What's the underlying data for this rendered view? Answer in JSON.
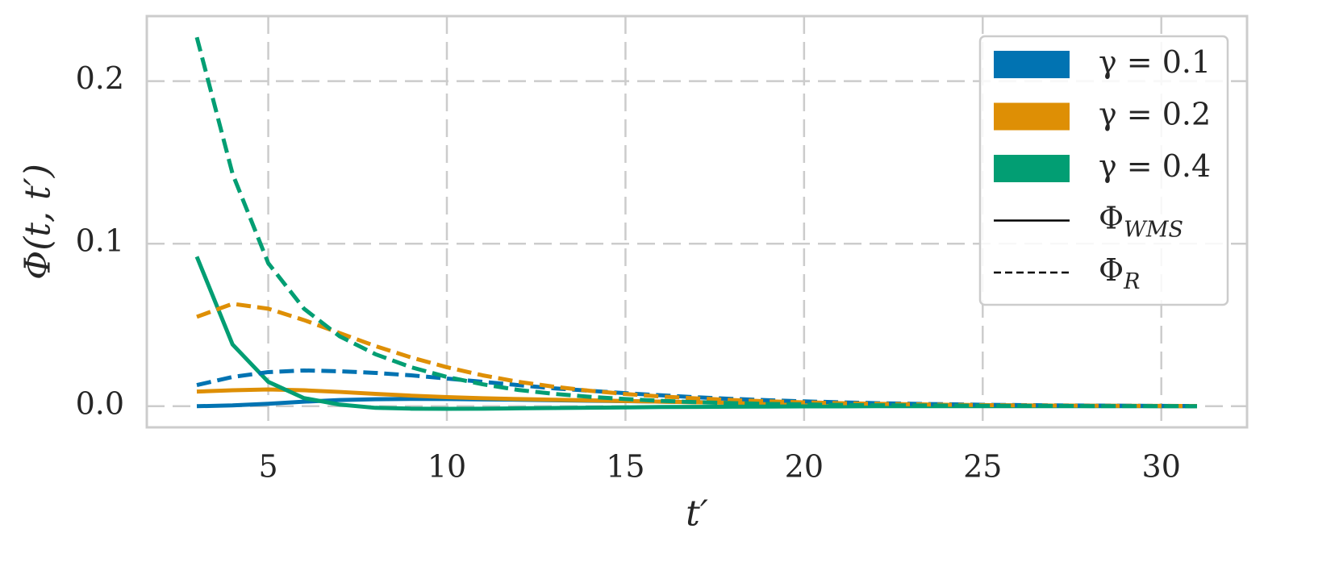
{
  "chart_data": {
    "type": "line",
    "ylabel": "Φ(t, t′)",
    "xlabel": "t′",
    "x": [
      3,
      4,
      5,
      6,
      7,
      8,
      9,
      10,
      11,
      12,
      13,
      14,
      15,
      16,
      17,
      18,
      19,
      20,
      21,
      22,
      23,
      24,
      25,
      26,
      27,
      28,
      29,
      30,
      31
    ],
    "series": [
      {
        "color": "#0173b2",
        "dashed": false,
        "values": [
          0,
          0.0005,
          0.0015,
          0.0028,
          0.0038,
          0.0043,
          0.0045,
          0.0044,
          0.0042,
          0.004,
          0.0037,
          0.0034,
          0.0031,
          0.0028,
          0.0025,
          0.0022,
          0.0019,
          0.0016,
          0.0013,
          0.0011,
          0.0009,
          0.0007,
          0.0006,
          0.0005,
          0.0004,
          0.0003,
          0.0002,
          0.0001,
          0.0001
        ]
      },
      {
        "color": "#de8f05",
        "dashed": false,
        "values": [
          0.009,
          0.0098,
          0.0103,
          0.0098,
          0.0088,
          0.0076,
          0.0065,
          0.0056,
          0.0049,
          0.0044,
          0.004,
          0.0036,
          0.0032,
          0.0028,
          0.0024,
          0.0021,
          0.0018,
          0.0015,
          0.0012,
          0.001,
          0.0008,
          0.0006,
          0.0005,
          0.0004,
          0.0003,
          0.0002,
          0.0002,
          0.0001,
          0.0001
        ]
      },
      {
        "color": "#029e73",
        "dashed": false,
        "values": [
          0.092,
          0.038,
          0.015,
          0.005,
          0.001,
          -0.001,
          -0.0015,
          -0.0016,
          -0.0015,
          -0.0013,
          -0.0011,
          -0.0009,
          -0.0007,
          -0.0005,
          -0.0004,
          -0.0003,
          -0.0002,
          -0.0001,
          -0.0001,
          0,
          0,
          0,
          0,
          0,
          0,
          0,
          0,
          0,
          0
        ]
      },
      {
        "color": "#0173b2",
        "dashed": true,
        "values": [
          0.013,
          0.018,
          0.021,
          0.022,
          0.0215,
          0.0205,
          0.019,
          0.017,
          0.015,
          0.013,
          0.011,
          0.0095,
          0.008,
          0.0067,
          0.0055,
          0.0045,
          0.0037,
          0.003,
          0.0024,
          0.0019,
          0.0015,
          0.0012,
          0.0009,
          0.0007,
          0.0005,
          0.0004,
          0.0003,
          0.0002,
          0.0001
        ]
      },
      {
        "color": "#de8f05",
        "dashed": true,
        "values": [
          0.055,
          0.063,
          0.06,
          0.053,
          0.045,
          0.037,
          0.03,
          0.024,
          0.019,
          0.015,
          0.012,
          0.0095,
          0.0075,
          0.006,
          0.0048,
          0.0038,
          0.003,
          0.0024,
          0.0019,
          0.0015,
          0.0012,
          0.0009,
          0.0007,
          0.0005,
          0.0004,
          0.0003,
          0.0002,
          0.0002,
          0.0001
        ]
      },
      {
        "color": "#029e73",
        "dashed": true,
        "values": [
          0.227,
          0.143,
          0.088,
          0.06,
          0.043,
          0.032,
          0.024,
          0.018,
          0.0135,
          0.01,
          0.0076,
          0.0058,
          0.0044,
          0.0033,
          0.0025,
          0.0019,
          0.0014,
          0.0011,
          0.0008,
          0.0006,
          0.0005,
          0.0004,
          0.0003,
          0.0002,
          0.0002,
          0.0001,
          0.0001,
          0.0001,
          0
        ]
      }
    ],
    "legend_entries": [
      {
        "label": "γ = 0.1",
        "kind": "patch",
        "color": "#0173b2"
      },
      {
        "label": "γ = 0.2",
        "kind": "patch",
        "color": "#de8f05"
      },
      {
        "label": "γ = 0.4",
        "kind": "patch",
        "color": "#029e73"
      },
      {
        "label": "Φ",
        "subscript": "WMS",
        "kind": "line",
        "dashed": false,
        "color": "#000000"
      },
      {
        "label": "Φ",
        "subscript": "R",
        "kind": "line",
        "dashed": true,
        "color": "#000000"
      }
    ],
    "legend_position": "upper right",
    "xlim": [
      1.6,
      32.4
    ],
    "ylim": [
      -0.013,
      0.24
    ],
    "xticks": [
      5,
      10,
      15,
      20,
      25,
      30
    ],
    "yticks": [
      {
        "value": 0,
        "label": "0.0"
      },
      0.1,
      0.2
    ],
    "grid": true
  }
}
